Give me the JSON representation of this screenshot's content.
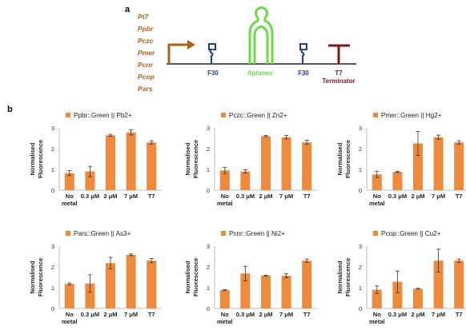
{
  "panels": {
    "a": "a",
    "b": "b"
  },
  "construct": {
    "promoters": [
      "Pt7",
      "Ppbr",
      "Pczc",
      "Pmer",
      "Pcnr",
      "Pcop",
      "Pars"
    ],
    "parts": {
      "f30_left": "F30",
      "aptamer": "Aptamer",
      "f30_right": "F30",
      "t7": "T7",
      "terminator": "Terminator"
    },
    "colors": {
      "promoter": "#b25f1c",
      "f30": "#1f3f8a",
      "aptamer": "#6ddb46",
      "terminator": "#7a1a1a"
    }
  },
  "chart_data": [
    {
      "type": "bar",
      "legend": "Ppbr::Green || Pb2+",
      "categories": [
        "No metal",
        "0.3 μM",
        "2 μM",
        "7 μM",
        "T7"
      ],
      "values": [
        0.82,
        0.9,
        2.64,
        2.78,
        2.3
      ],
      "errors": [
        0.12,
        0.25,
        0.05,
        0.12,
        0.08
      ],
      "ylabel": "Normalised Fluorescence",
      "ylim": [
        0,
        3
      ],
      "yticks": [
        0,
        1,
        2,
        3
      ],
      "color": "#ed8a3d"
    },
    {
      "type": "bar",
      "legend": "Pczc::Green || Zn2+",
      "categories": [
        "No metal",
        "0.3 μM",
        "2 μM",
        "7 μM",
        "T7"
      ],
      "values": [
        0.95,
        0.9,
        2.6,
        2.55,
        2.3
      ],
      "errors": [
        0.15,
        0.08,
        0.03,
        0.08,
        0.1
      ],
      "ylabel": "Normalised Fluorescence",
      "ylim": [
        0,
        3
      ],
      "yticks": [
        0,
        1,
        2,
        3
      ],
      "color": "#ed8a3d"
    },
    {
      "type": "bar",
      "legend": "Pmer::Green || Hg2+",
      "categories": [
        "No metal",
        "0.3 μM",
        "2 μM",
        "7 μM",
        "T7"
      ],
      "values": [
        0.76,
        0.88,
        2.25,
        2.55,
        2.3
      ],
      "errors": [
        0.15,
        0.03,
        0.58,
        0.1,
        0.08
      ],
      "ylabel": "Normalised Fluorescence",
      "ylim": [
        0,
        3
      ],
      "yticks": [
        0,
        1,
        2,
        3
      ],
      "color": "#ed8a3d"
    },
    {
      "type": "bar",
      "legend": "Pars::Green || As3+",
      "categories": [
        "No metal",
        "0.3 μM",
        "2 μM",
        "7 μM",
        "T7"
      ],
      "values": [
        1.18,
        1.2,
        2.18,
        2.58,
        2.3
      ],
      "errors": [
        0.05,
        0.42,
        0.28,
        0.04,
        0.1
      ],
      "ylabel": "Normalised Fluorescence",
      "ylim": [
        0,
        3
      ],
      "yticks": [
        0,
        1,
        2,
        3
      ],
      "color": "#ed8a3d"
    },
    {
      "type": "bar",
      "legend": "Pcnr::Green || Ni2+",
      "categories": [
        "No metal",
        "0.3 μM",
        "2 μM",
        "7 μM",
        "T7"
      ],
      "values": [
        0.88,
        1.68,
        1.58,
        1.58,
        2.3
      ],
      "errors": [
        0.02,
        0.35,
        0.02,
        0.1,
        0.08
      ],
      "ylabel": "Normalised Fluorescence",
      "ylim": [
        0,
        3
      ],
      "yticks": [
        0,
        1,
        2,
        3
      ],
      "color": "#ed8a3d"
    },
    {
      "type": "bar",
      "legend": "Pcop::Green || Cu2+",
      "categories": [
        "No metal",
        "0.3 μM",
        "2 μM",
        "7 μM",
        "T7"
      ],
      "values": [
        0.9,
        1.28,
        0.95,
        2.3,
        2.3
      ],
      "errors": [
        0.18,
        0.52,
        0.02,
        0.55,
        0.08
      ],
      "ylabel": "Normalised Fluorescence",
      "ylim": [
        0,
        3
      ],
      "yticks": [
        0,
        1,
        2,
        3
      ],
      "color": "#ed8a3d"
    }
  ]
}
